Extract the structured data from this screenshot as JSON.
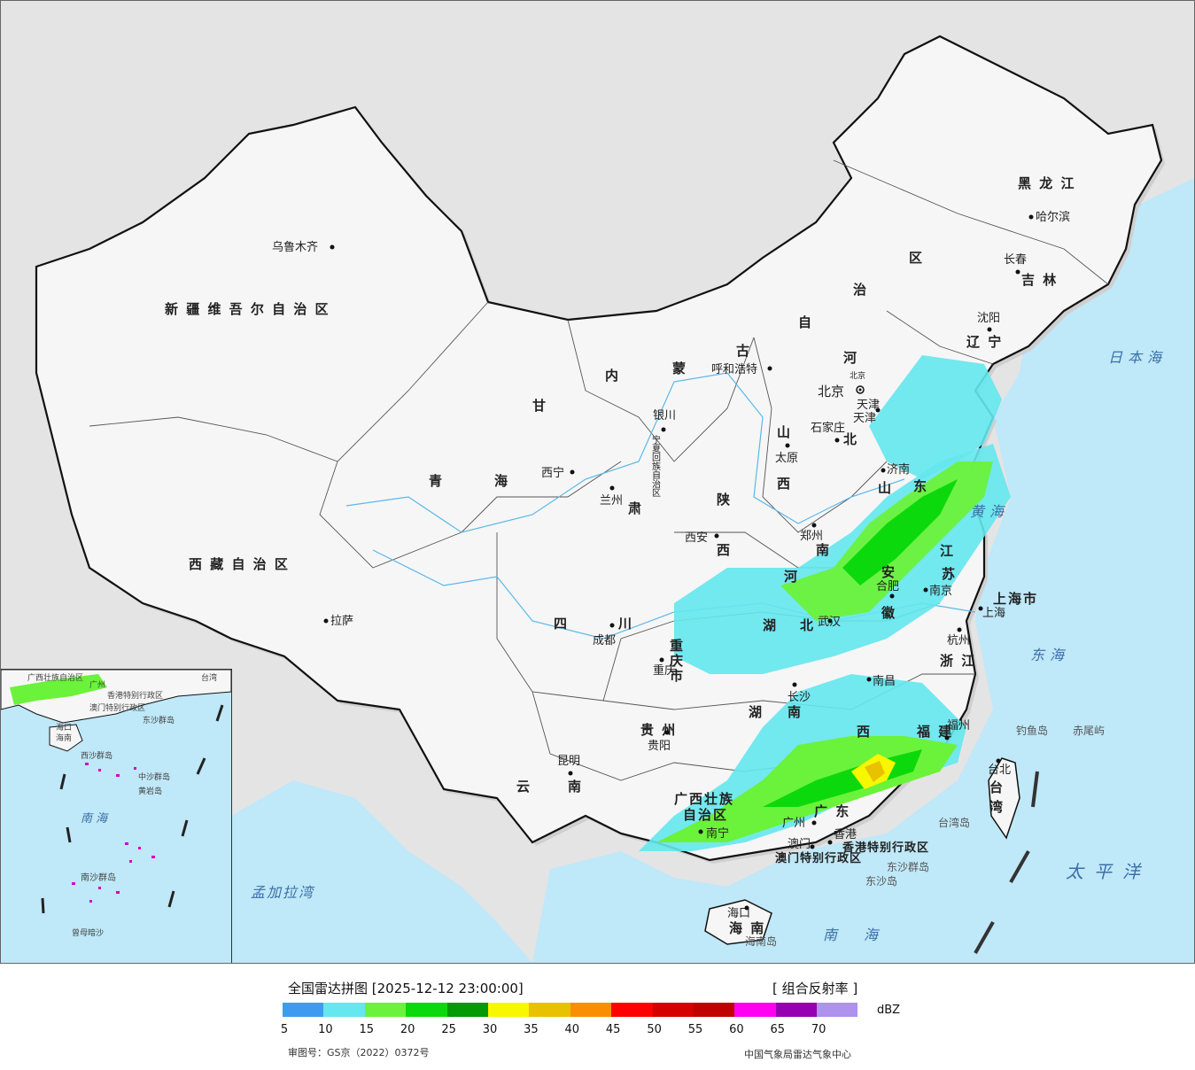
{
  "map": {
    "provinces": [
      {
        "id": "xinjiang",
        "label": "新 疆 维 吾 尔 自 治 区"
      },
      {
        "id": "xizang",
        "label": "西 藏 自 治 区"
      },
      {
        "id": "qinghai-a",
        "label": "青"
      },
      {
        "id": "qinghai-b",
        "label": "海"
      },
      {
        "id": "gansu-a",
        "label": "甘"
      },
      {
        "id": "gansu-b",
        "label": "肃"
      },
      {
        "id": "neimenggu-a",
        "label": "内"
      },
      {
        "id": "neimenggu-b",
        "label": "蒙"
      },
      {
        "id": "neimenggu-c",
        "label": "古"
      },
      {
        "id": "neimenggu-d",
        "label": "自"
      },
      {
        "id": "neimenggu-e",
        "label": "治"
      },
      {
        "id": "neimenggu-f",
        "label": "区"
      },
      {
        "id": "heilongjiang",
        "label": "黑 龙 江"
      },
      {
        "id": "jilin",
        "label": "吉 林"
      },
      {
        "id": "liaoning",
        "label": "辽 宁"
      },
      {
        "id": "sichuan-a",
        "label": "四"
      },
      {
        "id": "sichuan-b",
        "label": "川"
      },
      {
        "id": "yunnan-a",
        "label": "云"
      },
      {
        "id": "yunnan-b",
        "label": "南"
      },
      {
        "id": "guizhou",
        "label": "贵 州"
      },
      {
        "id": "chongqing",
        "label": "重庆市"
      },
      {
        "id": "shaanxi-a",
        "label": "陕"
      },
      {
        "id": "shaanxi-b",
        "label": "西"
      },
      {
        "id": "shanxi-a",
        "label": "山"
      },
      {
        "id": "shanxi-b",
        "label": "西"
      },
      {
        "id": "hebei-a",
        "label": "河"
      },
      {
        "id": "hebei-b",
        "label": "北"
      },
      {
        "id": "henan-a",
        "label": "河"
      },
      {
        "id": "henan-b",
        "label": "南"
      },
      {
        "id": "hubei-a",
        "label": "湖"
      },
      {
        "id": "hubei-b",
        "label": "北"
      },
      {
        "id": "hunan-a",
        "label": "湖"
      },
      {
        "id": "hunan-b",
        "label": "南"
      },
      {
        "id": "jiangxi-b",
        "label": "西"
      },
      {
        "id": "shandong-a",
        "label": "山"
      },
      {
        "id": "shandong-b",
        "label": "东"
      },
      {
        "id": "jiangsu-a",
        "label": "江"
      },
      {
        "id": "jiangsu-b",
        "label": "苏"
      },
      {
        "id": "anhui-a",
        "label": "安"
      },
      {
        "id": "anhui-b",
        "label": "徽"
      },
      {
        "id": "zhejiang",
        "label": "浙 江"
      },
      {
        "id": "fujian",
        "label": "福 建"
      },
      {
        "id": "guangdong",
        "label": "广 东"
      },
      {
        "id": "guangxi-a",
        "label": "广西壮族"
      },
      {
        "id": "guangxi-b",
        "label": "自治区"
      },
      {
        "id": "hainan",
        "label": "海 南"
      },
      {
        "id": "taiwan-a",
        "label": "台"
      },
      {
        "id": "taiwan-b",
        "label": "湾"
      },
      {
        "id": "shanghai",
        "label": "上海市"
      },
      {
        "id": "tianjin",
        "label": "天津"
      },
      {
        "id": "beijing",
        "label": "北京"
      },
      {
        "id": "ningxia",
        "label": "宁夏回族自治区"
      },
      {
        "id": "hkk",
        "label": "香港特别行政区"
      },
      {
        "id": "macau",
        "label": "澳门特别行政区"
      }
    ],
    "cities": [
      {
        "id": "urumqi",
        "label": "乌鲁木齐"
      },
      {
        "id": "lhasa",
        "label": "拉萨"
      },
      {
        "id": "xining",
        "label": "西宁"
      },
      {
        "id": "lanzhou",
        "label": "兰州"
      },
      {
        "id": "yinchuan",
        "label": "银川"
      },
      {
        "id": "hohhot",
        "label": "呼和浩特"
      },
      {
        "id": "harbin",
        "label": "哈尔滨"
      },
      {
        "id": "changchun",
        "label": "长春"
      },
      {
        "id": "shenyang",
        "label": "沈阳"
      },
      {
        "id": "beijing-c",
        "label": "北京"
      },
      {
        "id": "tianjin-c",
        "label": "天津"
      },
      {
        "id": "shijiazhuang",
        "label": "石家庄"
      },
      {
        "id": "taiyuan",
        "label": "太原"
      },
      {
        "id": "jinan",
        "label": "济南"
      },
      {
        "id": "zhengzhou",
        "label": "郑州"
      },
      {
        "id": "xian",
        "label": "西安"
      },
      {
        "id": "chengdu",
        "label": "成都"
      },
      {
        "id": "chongqing-c",
        "label": "重庆"
      },
      {
        "id": "guiyang",
        "label": "贵阳"
      },
      {
        "id": "kunming",
        "label": "昆明"
      },
      {
        "id": "nanning",
        "label": "南宁"
      },
      {
        "id": "guangzhou",
        "label": "广州"
      },
      {
        "id": "hongkong",
        "label": "香港"
      },
      {
        "id": "macau-c",
        "label": "澳门"
      },
      {
        "id": "haikou",
        "label": "海口"
      },
      {
        "id": "fuzhou",
        "label": "福州"
      },
      {
        "id": "taipei",
        "label": "台北"
      },
      {
        "id": "hangzhou",
        "label": "杭州"
      },
      {
        "id": "shanghai-c",
        "label": "上海"
      },
      {
        "id": "nanjing",
        "label": "南京"
      },
      {
        "id": "hefei",
        "label": "合肥"
      },
      {
        "id": "wuhan",
        "label": "武汉"
      },
      {
        "id": "changsha",
        "label": "长沙"
      },
      {
        "id": "nanchang",
        "label": "南昌"
      }
    ],
    "seas": [
      {
        "id": "japan-sea",
        "label": "日本海"
      },
      {
        "id": "yellow-sea",
        "label": "黄海"
      },
      {
        "id": "east-sea",
        "label": "东海"
      },
      {
        "id": "pacific",
        "label": "太平洋"
      },
      {
        "id": "south-sea",
        "label": "南海"
      },
      {
        "id": "bengal",
        "label": "孟加拉湾"
      }
    ],
    "islands": [
      {
        "id": "diaoyu",
        "label": "钓鱼岛"
      },
      {
        "id": "chiwei",
        "label": "赤尾屿"
      },
      {
        "id": "taiwan-island",
        "label": "台湾岛"
      },
      {
        "id": "hainan-island",
        "label": "海南岛"
      },
      {
        "id": "dongsha-qundao",
        "label": "东沙群岛"
      },
      {
        "id": "dongsha-dao",
        "label": "东沙岛"
      }
    ]
  },
  "inset": {
    "labels": [
      {
        "id": "inset-guangxi",
        "label": "广西壮族自治区"
      },
      {
        "id": "inset-guangzhou",
        "label": "广州"
      },
      {
        "id": "inset-hk",
        "label": "香港特别行政区"
      },
      {
        "id": "inset-macau",
        "label": "澳门特别行政区"
      },
      {
        "id": "inset-dongsha",
        "label": "东沙群岛"
      },
      {
        "id": "inset-taiwan",
        "label": "台湾"
      },
      {
        "id": "inset-haikou",
        "label": "海口"
      },
      {
        "id": "inset-hainan",
        "label": "海南"
      },
      {
        "id": "inset-xisha",
        "label": "西沙群岛"
      },
      {
        "id": "inset-zhongsha",
        "label": "中沙群岛"
      },
      {
        "id": "inset-huangyan",
        "label": "黄岩岛"
      },
      {
        "id": "inset-southsea",
        "label": "南 海"
      },
      {
        "id": "inset-nansha",
        "label": "南沙群岛"
      },
      {
        "id": "inset-zengmu",
        "label": "曾母暗沙"
      }
    ]
  },
  "legend": {
    "title": "全国雷达拼图 [2025-12-12 23:00:00]",
    "product": "[ 组合反射率 ]",
    "unit": "dBZ",
    "colors": [
      "#3f9bf0",
      "#64e7ee",
      "#6bf23a",
      "#0cd90c",
      "#069a06",
      "#f7f700",
      "#e8c100",
      "#fb8d00",
      "#fe0000",
      "#d50000",
      "#c10000",
      "#ff00f2",
      "#9500b2",
      "#ae92ee"
    ],
    "ticks": [
      "5",
      "10",
      "15",
      "20",
      "25",
      "30",
      "35",
      "40",
      "45",
      "50",
      "55",
      "60",
      "65",
      "70"
    ],
    "approval": "审图号：GS京（2022）0372号",
    "credit": "中国气象局雷达气象中心"
  }
}
